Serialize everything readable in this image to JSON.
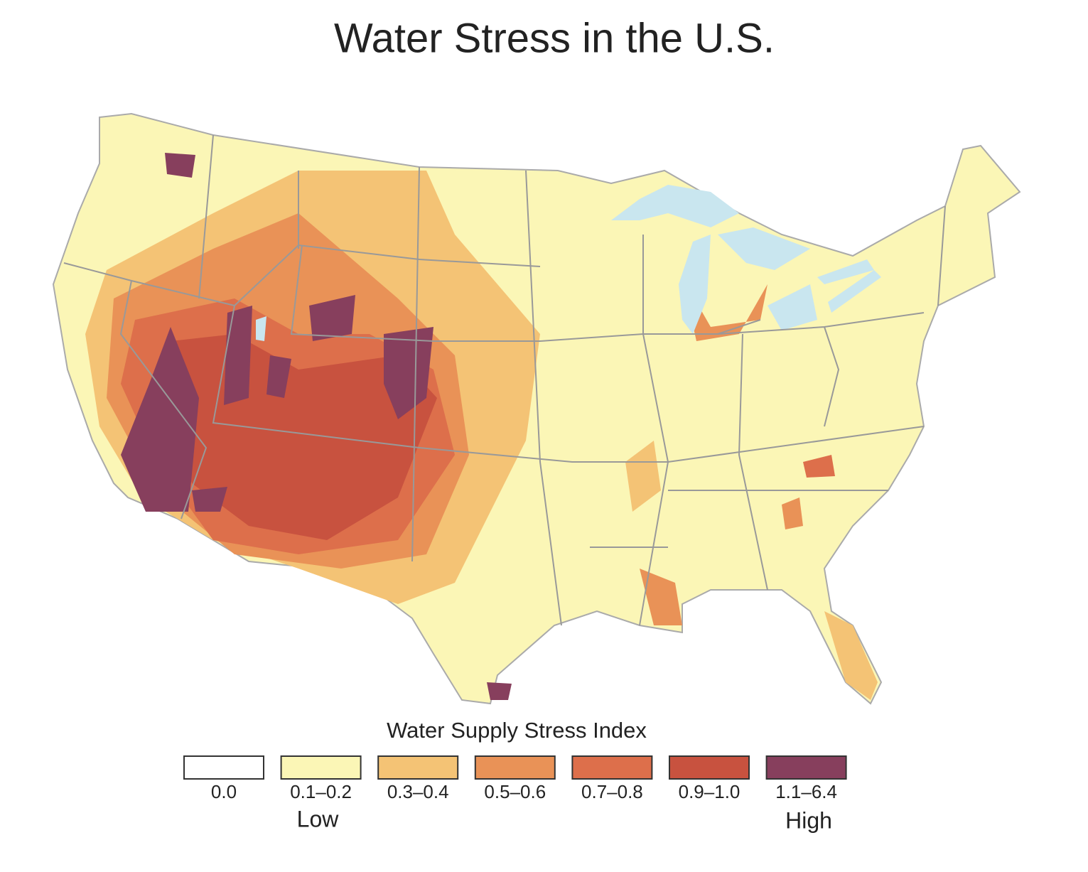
{
  "title": "Water Stress in the U.S.",
  "legend": {
    "title": "Water Supply Stress Index",
    "items": [
      {
        "label": "0.0",
        "color": "#ffffff"
      },
      {
        "label": "0.1–0.2",
        "color": "#fbf6b6"
      },
      {
        "label": "0.3–0.4",
        "color": "#f4c375"
      },
      {
        "label": "0.5–0.6",
        "color": "#e99257"
      },
      {
        "label": "0.7–0.8",
        "color": "#dd6f4b"
      },
      {
        "label": "0.9–1.0",
        "color": "#c8523f"
      },
      {
        "label": "1.1–6.4",
        "color": "#873f5d"
      }
    ],
    "low_label": "Low",
    "high_label": "High"
  }
}
